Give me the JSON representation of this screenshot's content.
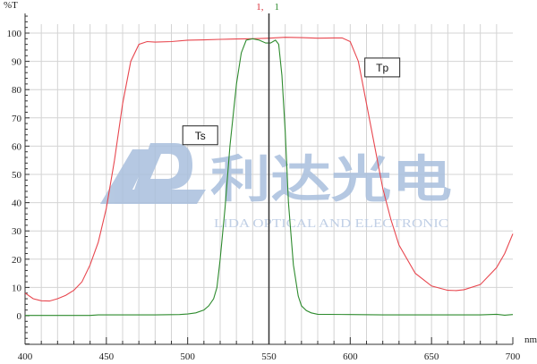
{
  "chart_data": {
    "type": "line",
    "ylabel": "%T",
    "xlabel": "nm",
    "xlim": [
      400,
      700
    ],
    "ylim": [
      -10,
      107
    ],
    "xticks": [
      400,
      450,
      500,
      550,
      600,
      650,
      700
    ],
    "yticks": [
      0,
      10,
      20,
      30,
      40,
      50,
      60,
      70,
      80,
      90,
      100
    ],
    "grid": true,
    "cursor": {
      "x": 550,
      "labels": [
        "1,",
        "1"
      ],
      "label_colors": [
        "#d9303a",
        "#2e8b2e"
      ]
    },
    "annotations": [
      {
        "text": "Tp",
        "x": 620,
        "y": 88
      },
      {
        "text": "Ts",
        "x": 508,
        "y": 64
      }
    ],
    "watermark": {
      "cn": "利达光电",
      "en": "LIDA OPTICAL AND ELECTRONIC",
      "color": "#a9bfdd"
    },
    "series": [
      {
        "color": "#e8474f",
        "x": [
          400,
          405,
          410,
          415,
          420,
          425,
          430,
          435,
          440,
          445,
          450,
          455,
          460,
          465,
          470,
          475,
          480,
          490,
          500,
          510,
          520,
          530,
          540,
          550,
          560,
          570,
          580,
          590,
          595,
          600,
          605,
          610,
          615,
          620,
          625,
          630,
          640,
          650,
          660,
          665,
          670,
          680,
          690,
          695,
          700
        ],
        "y": [
          8,
          6,
          5.3,
          5.2,
          6,
          7.2,
          9,
          12,
          18,
          26,
          38,
          55,
          75,
          90,
          96,
          97,
          96.8,
          97,
          97.5,
          97.6,
          97.8,
          97.9,
          98,
          98.2,
          98.5,
          98.4,
          98.2,
          98.3,
          98.3,
          97,
          90,
          75,
          60,
          45,
          34,
          25,
          15,
          10.5,
          9,
          8.9,
          9.2,
          11,
          17,
          22,
          29
        ]
      },
      {
        "color": "#2e8b2e",
        "x": [
          400,
          440,
          445,
          480,
          495,
          500,
          505,
          510,
          513,
          516,
          518,
          520,
          523,
          526,
          530,
          533,
          536,
          540,
          544,
          548,
          551,
          554,
          556,
          558,
          560,
          562,
          565,
          568,
          570,
          573,
          576,
          580,
          600,
          620,
          680,
          690,
          695,
          700
        ],
        "y": [
          0.1,
          0.1,
          0.3,
          0.3,
          0.4,
          0.6,
          1,
          2,
          3.5,
          6,
          10,
          20,
          38,
          60,
          82,
          93,
          97.5,
          98,
          97.5,
          96.5,
          96.5,
          97.5,
          96,
          85,
          65,
          40,
          18,
          7,
          3.5,
          1.8,
          1,
          0.5,
          0.4,
          0.3,
          0.3,
          0.5,
          0.2,
          0.4
        ]
      }
    ]
  }
}
